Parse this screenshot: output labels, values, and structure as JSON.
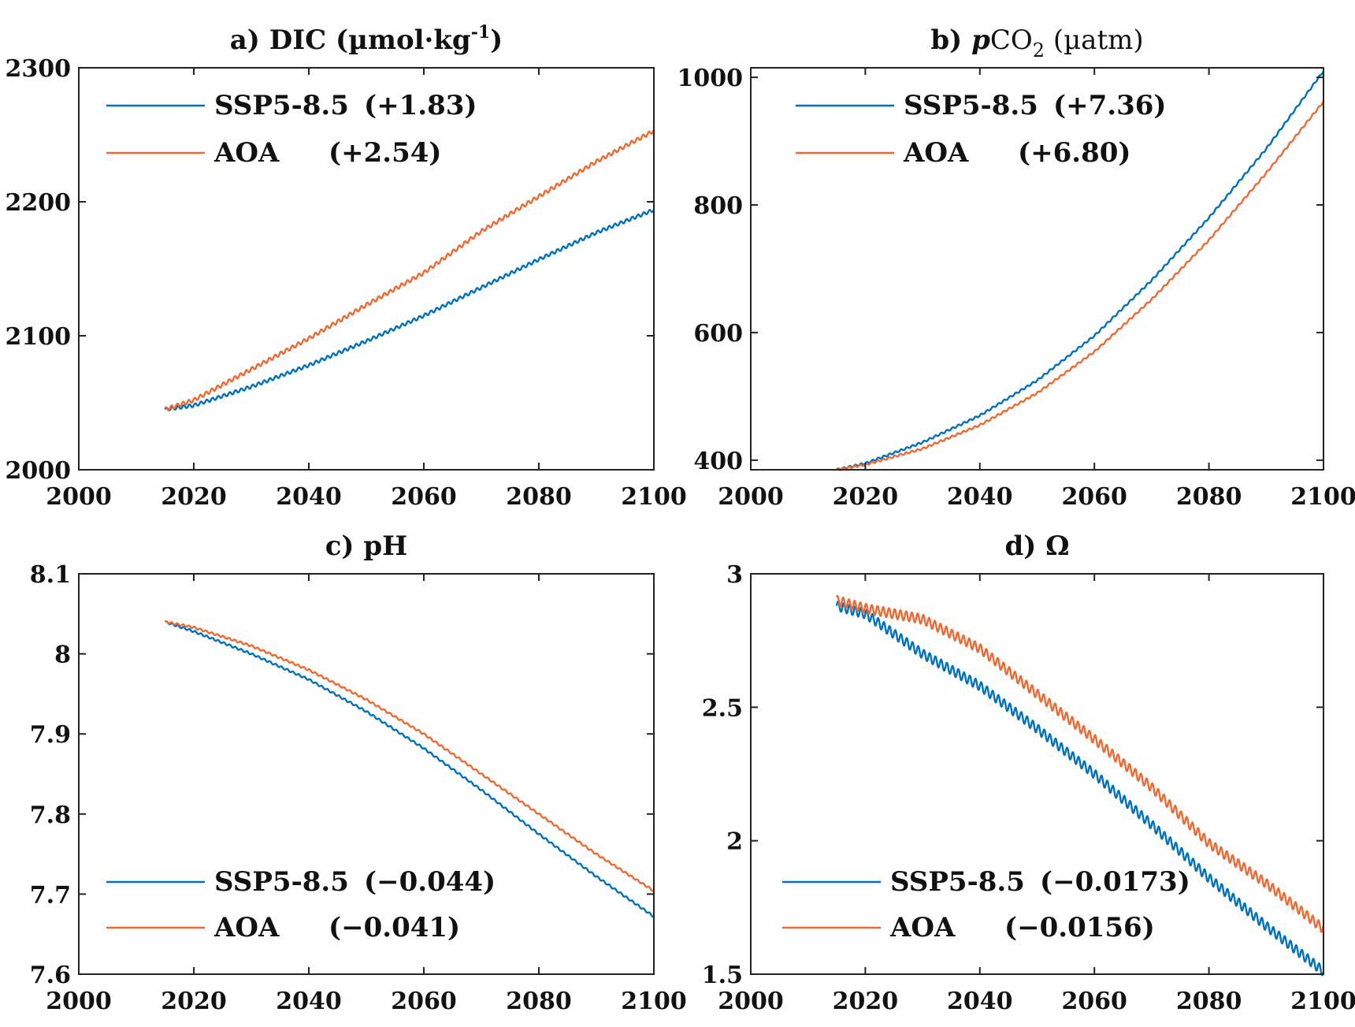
{
  "colors": {
    "ssp": "#0072BD",
    "aoa": "#ED6A33"
  },
  "chart_data": [
    {
      "type": "line",
      "panel": "a",
      "title": "a) DIC (µmol·kg",
      "title_sup": "-1",
      "title_end": ")",
      "xlim": [
        2000,
        2100
      ],
      "ylim": [
        2000,
        2300
      ],
      "xticks": [
        2000,
        2020,
        2040,
        2060,
        2080,
        2100
      ],
      "xtick_labels": [
        "2000",
        "2020",
        "2040",
        "2060",
        "2080",
        "2100"
      ],
      "yticks": [
        2000,
        2100,
        2200,
        2300
      ],
      "ytick_labels": [
        "2000",
        "2100",
        "2200",
        "2300"
      ],
      "legend_position": "top-left",
      "series": [
        {
          "name": "SSP5-8.5",
          "legend_value": "(+1.83)",
          "color_key": "ssp",
          "x": [
            2015,
            2020,
            2030,
            2040,
            2050,
            2060,
            2070,
            2080,
            2090,
            2100
          ],
          "values": [
            2045,
            2048,
            2062,
            2078,
            2096,
            2115,
            2136,
            2157,
            2177,
            2194
          ],
          "wiggle": 1.2
        },
        {
          "name": "AOA",
          "legend_value": "(+2.54)",
          "color_key": "aoa",
          "x": [
            2015,
            2020,
            2030,
            2040,
            2050,
            2060,
            2070,
            2080,
            2090,
            2100
          ],
          "values": [
            2045,
            2052,
            2075,
            2098,
            2123,
            2147,
            2178,
            2204,
            2230,
            2253
          ],
          "wiggle": 1.4
        }
      ]
    },
    {
      "type": "line",
      "panel": "b",
      "title_parts": [
        "b) ",
        "p",
        "CO",
        "2",
        " (µatm)"
      ],
      "xlim": [
        2000,
        2100
      ],
      "ylim": [
        385,
        1015
      ],
      "xticks": [
        2000,
        2020,
        2040,
        2060,
        2080,
        2100
      ],
      "xtick_labels": [
        "2000",
        "2020",
        "2040",
        "2060",
        "2080",
        "2100"
      ],
      "yticks": [
        400,
        600,
        800,
        1000
      ],
      "ytick_labels": [
        "400",
        "600",
        "800",
        "1000"
      ],
      "legend_position": "top-left",
      "series": [
        {
          "name": "SSP5-8.5",
          "legend_value": "(+7.36)",
          "color_key": "ssp",
          "x": [
            2015,
            2020,
            2030,
            2040,
            2050,
            2060,
            2070,
            2080,
            2090,
            2100
          ],
          "values": [
            385,
            395,
            428,
            470,
            525,
            595,
            682,
            780,
            888,
            1010
          ],
          "wiggle": 1.5
        },
        {
          "name": "AOA",
          "legend_value": "(+6.80)",
          "color_key": "aoa",
          "x": [
            2015,
            2020,
            2030,
            2040,
            2050,
            2060,
            2070,
            2080,
            2090,
            2100
          ],
          "values": [
            385,
            393,
            418,
            455,
            505,
            570,
            652,
            745,
            850,
            962
          ],
          "wiggle": 1.5
        }
      ]
    },
    {
      "type": "line",
      "panel": "c",
      "title": "c) pH",
      "xlim": [
        2000,
        2100
      ],
      "ylim": [
        7.6,
        8.1
      ],
      "xticks": [
        2000,
        2020,
        2040,
        2060,
        2080,
        2100
      ],
      "xtick_labels": [
        "2000",
        "2020",
        "2040",
        "2060",
        "2080",
        "2100"
      ],
      "yticks": [
        7.6,
        7.7,
        7.8,
        7.9,
        8.0,
        8.1
      ],
      "ytick_labels": [
        "7.6",
        "7.7",
        "7.8",
        "7.9",
        "8",
        "8.1"
      ],
      "legend_position": "bottom-left",
      "series": [
        {
          "name": "SSP5-8.5",
          "legend_value": "(−0.044)",
          "color_key": "ssp",
          "x": [
            2015,
            2020,
            2030,
            2040,
            2050,
            2060,
            2070,
            2080,
            2090,
            2100
          ],
          "values": [
            8.04,
            8.028,
            8.0,
            7.968,
            7.928,
            7.882,
            7.83,
            7.775,
            7.722,
            7.672
          ],
          "wiggle": 0.0012
        },
        {
          "name": "AOA",
          "legend_value": "(−0.041)",
          "color_key": "aoa",
          "x": [
            2015,
            2020,
            2030,
            2040,
            2050,
            2060,
            2070,
            2080,
            2090,
            2100
          ],
          "values": [
            8.04,
            8.033,
            8.01,
            7.98,
            7.943,
            7.9,
            7.85,
            7.8,
            7.75,
            7.704
          ],
          "wiggle": 0.0012
        }
      ]
    },
    {
      "type": "line",
      "panel": "d",
      "title": "d) Ω",
      "xlim": [
        2000,
        2100
      ],
      "ylim": [
        1.5,
        3.0
      ],
      "xticks": [
        2000,
        2020,
        2040,
        2060,
        2080,
        2100
      ],
      "xtick_labels": [
        "2000",
        "2020",
        "2040",
        "2060",
        "2080",
        "2100"
      ],
      "yticks": [
        1.5,
        2.0,
        2.5,
        3.0
      ],
      "ytick_labels": [
        "1.5",
        "2",
        "2.5",
        "3"
      ],
      "legend_position": "bottom-left",
      "series": [
        {
          "name": "SSP5-8.5",
          "legend_value": "(−0.0173)",
          "color_key": "ssp",
          "x": [
            2015,
            2020,
            2030,
            2040,
            2050,
            2060,
            2070,
            2080,
            2090,
            2100
          ],
          "values": [
            2.88,
            2.85,
            2.7,
            2.58,
            2.42,
            2.25,
            2.06,
            1.86,
            1.68,
            1.51
          ],
          "wiggle": 0.018
        },
        {
          "name": "AOA",
          "legend_value": "(−0.0156)",
          "color_key": "aoa",
          "x": [
            2015,
            2020,
            2030,
            2040,
            2050,
            2060,
            2070,
            2080,
            2090,
            2100
          ],
          "values": [
            2.9,
            2.87,
            2.83,
            2.72,
            2.55,
            2.38,
            2.2,
            1.99,
            1.84,
            1.67
          ],
          "wiggle": 0.018
        }
      ]
    }
  ]
}
